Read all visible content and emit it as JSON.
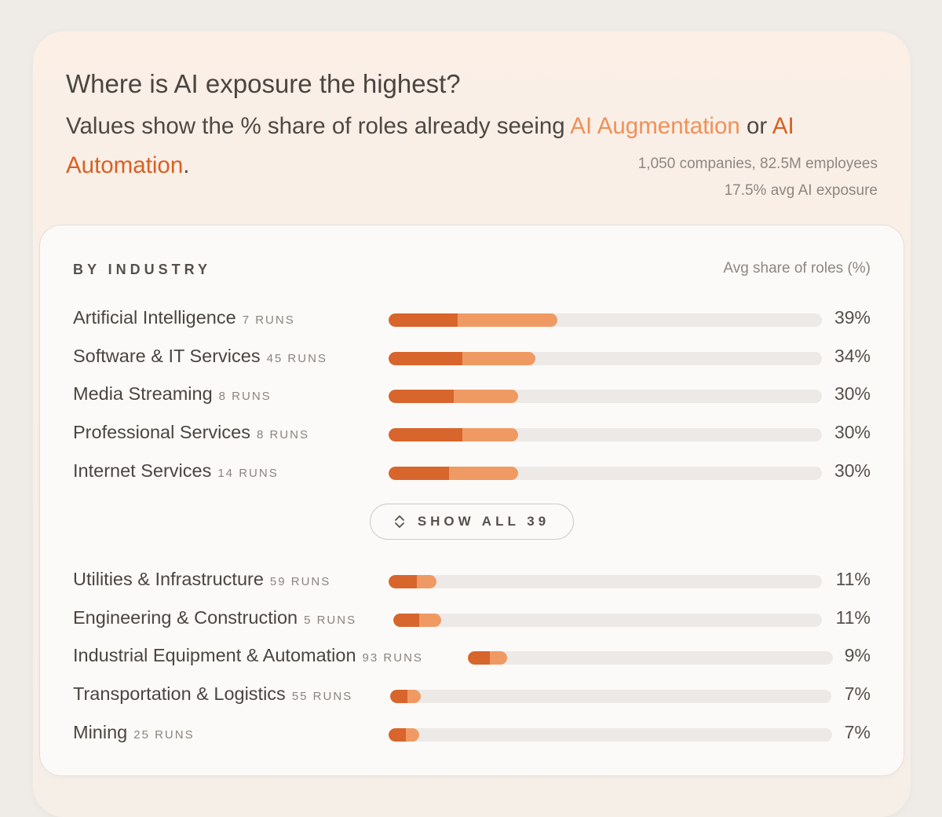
{
  "header": {
    "title": "Where is AI exposure the highest?",
    "subtitle_prefix": "Values show the % share of roles already seeing ",
    "subtitle_aug": "AI Augmentation",
    "subtitle_mid": " or ",
    "subtitle_auto": "AI Automation",
    "subtitle_suffix": ".",
    "meta_companies": "1,050 companies, 82.5M employees",
    "meta_avg": "17.5% avg AI exposure"
  },
  "card": {
    "section_label": "BY INDUSTRY",
    "column_header": "Avg share of roles (%)",
    "show_all_label": "SHOW ALL 39",
    "show_all_icon": "expand-vertical-icon"
  },
  "colors": {
    "automation": "#d8652c",
    "augmentation": "#ef9a63",
    "track": "#ece9e6"
  },
  "chart_data": {
    "type": "bar",
    "orientation": "horizontal",
    "stacked": true,
    "title": "BY INDUSTRY",
    "value_label": "Avg share of roles (%)",
    "xlim": [
      0,
      100
    ],
    "series_names": [
      "AI Automation",
      "AI Augmentation"
    ],
    "rows": [
      {
        "name": "Artificial Intelligence",
        "runs": "7 RUNS",
        "total": 39,
        "automation": 16,
        "augmentation": 23,
        "label": "39%"
      },
      {
        "name": "Software & IT Services",
        "runs": "45 RUNS",
        "total": 34,
        "automation": 17,
        "augmentation": 17,
        "label": "34%"
      },
      {
        "name": "Media Streaming",
        "runs": "8 RUNS",
        "total": 30,
        "automation": 15,
        "augmentation": 15,
        "label": "30%"
      },
      {
        "name": "Professional Services",
        "runs": "8 RUNS",
        "total": 30,
        "automation": 17,
        "augmentation": 13,
        "label": "30%"
      },
      {
        "name": "Internet Services",
        "runs": "14 RUNS",
        "total": 30,
        "automation": 14,
        "augmentation": 16,
        "label": "30%"
      },
      {
        "name": "Utilities & Infrastructure",
        "runs": "59 RUNS",
        "total": 11,
        "automation": 6.5,
        "augmentation": 4.5,
        "label": "11%"
      },
      {
        "name": "Engineering & Construction",
        "runs": "5 RUNS",
        "total": 11,
        "automation": 6,
        "augmentation": 5,
        "label": "11%"
      },
      {
        "name": "Industrial Equipment & Automation",
        "runs": "93 RUNS",
        "total": 9,
        "automation": 5,
        "augmentation": 4,
        "label": "9%"
      },
      {
        "name": "Transportation & Logistics",
        "runs": "55 RUNS",
        "total": 7,
        "automation": 4,
        "augmentation": 3,
        "label": "7%"
      },
      {
        "name": "Mining",
        "runs": "25 RUNS",
        "total": 7,
        "automation": 4,
        "augmentation": 3,
        "label": "7%"
      }
    ]
  }
}
